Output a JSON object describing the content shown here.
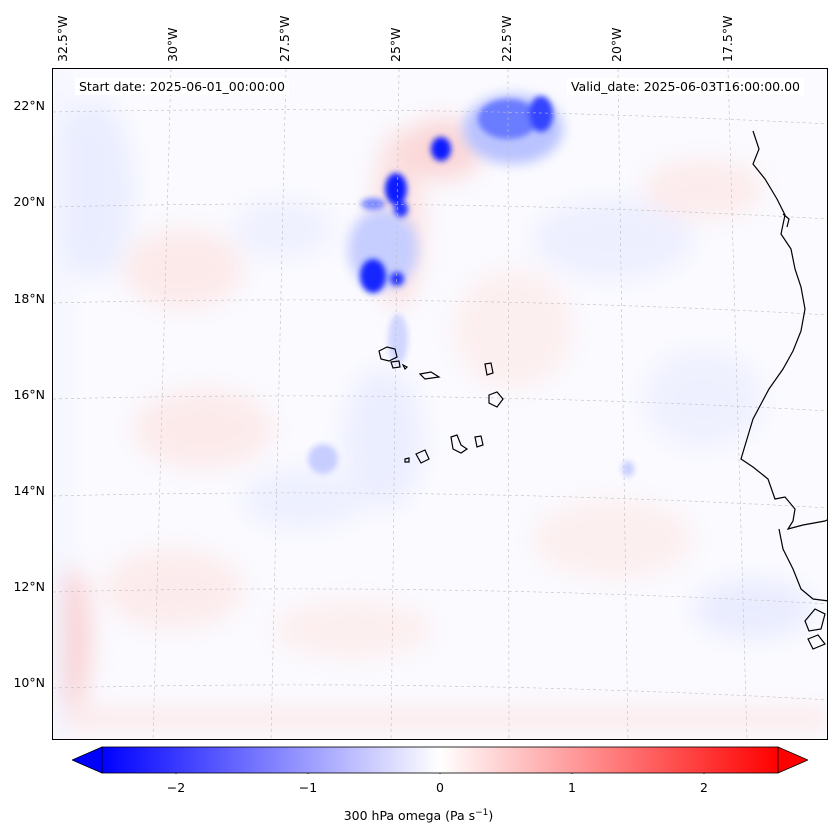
{
  "header": {
    "start_date": "Start date: 2025-06-01_00:00:00",
    "valid_date": "Valid_date: 2025-06-03T16:00:00.00"
  },
  "map": {
    "longitude_labels": [
      "32.5°W",
      "30°W",
      "27.5°W",
      "25°W",
      "22.5°W",
      "20°W",
      "17.5°W"
    ],
    "latitude_labels": [
      "22°N",
      "20°N",
      "18°N",
      "16°N",
      "14°N",
      "12°N",
      "10°N"
    ]
  },
  "colorbar": {
    "ticks": [
      "−2",
      "−1",
      "0",
      "1",
      "2"
    ],
    "label_main": "300 hPa omega (Pa s",
    "label_exp": "−1",
    "label_end": ")",
    "min_value": -2.7,
    "max_value": 2.7,
    "colors": {
      "negative": "#0000ff",
      "neutral": "#ffffff",
      "positive": "#ff0000"
    }
  }
}
